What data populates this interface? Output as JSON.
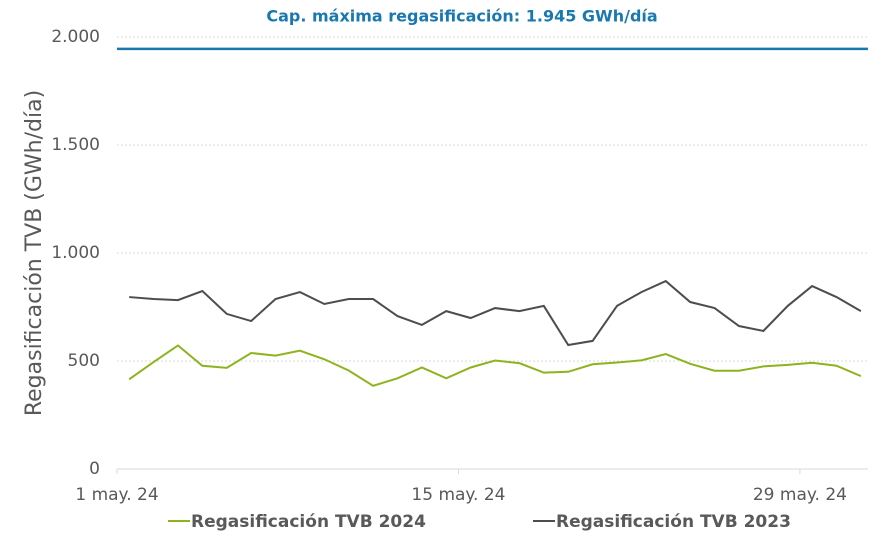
{
  "chart_data": {
    "type": "line",
    "y_label": "Regasificación TVB (GWh/día)",
    "annotation": {
      "label": "Cap. máxima regasificación: 1.945 GWh/día",
      "value": 1945,
      "color": "#1a78b0"
    },
    "categories": [
      "1 may. 24",
      null,
      null,
      null,
      null,
      null,
      null,
      null,
      null,
      null,
      null,
      null,
      null,
      null,
      "15 may. 24",
      null,
      null,
      null,
      null,
      null,
      null,
      null,
      null,
      null,
      null,
      null,
      null,
      null,
      "29 may. 24",
      null,
      null
    ],
    "series": [
      {
        "name": "Regasificación TVB 2024",
        "color": "#8db31d",
        "values": [
          415,
          495,
          572,
          478,
          468,
          537,
          525,
          548,
          508,
          456,
          385,
          420,
          470,
          420,
          470,
          502,
          490,
          446,
          450,
          485,
          493,
          503,
          532,
          487,
          455,
          455,
          475,
          482,
          492,
          478,
          430
        ]
      },
      {
        "name": "Regasificación TVB 2023",
        "color": "#4d4d4d",
        "values": [
          796,
          787,
          782,
          824,
          718,
          685,
          787,
          819,
          764,
          787,
          787,
          708,
          667,
          731,
          699,
          745,
          731,
          755,
          574,
          593,
          755,
          819,
          870,
          773,
          745,
          662,
          639,
          755,
          847,
          796,
          731
        ]
      }
    ],
    "ylim": [
      0,
      2000
    ],
    "yticks": [
      0,
      500,
      {
        "value": 1000,
        "label": "1.000"
      },
      {
        "value": 1500,
        "label": "1.500"
      },
      {
        "value": 2000,
        "label": "2.000"
      }
    ],
    "grid": true
  }
}
